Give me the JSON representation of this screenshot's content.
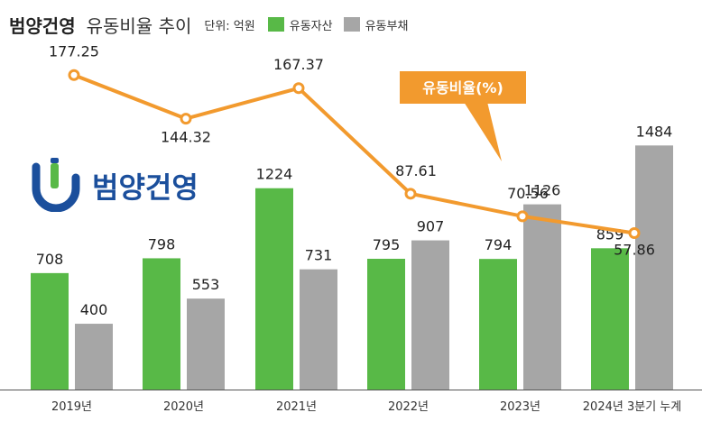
{
  "header": {
    "company": "범양건영",
    "subtitle": "유동비율 추이",
    "unit": "단위: 억원"
  },
  "logo": {
    "text": "범양건영"
  },
  "colors": {
    "asset": "#58b947",
    "liability": "#a6a6a6",
    "ratio": "#f29a2e"
  },
  "chart_data": {
    "type": "bar+line",
    "title": "범양건영 유동비율 추이",
    "unit": "단위: 억원",
    "categories": [
      "2019년",
      "2020년",
      "2021년",
      "2022년",
      "2023년",
      "2024년 3분기 누계"
    ],
    "series": [
      {
        "name": "유동자산",
        "type": "bar",
        "values": [
          708,
          798,
          1224,
          795,
          794,
          859
        ]
      },
      {
        "name": "유동부채",
        "type": "bar",
        "values": [
          400,
          553,
          731,
          907,
          1126,
          1484
        ]
      },
      {
        "name": "유동비율(%)",
        "type": "line",
        "values": [
          177.25,
          144.32,
          167.37,
          87.61,
          70.56,
          57.86
        ]
      }
    ],
    "value_labels": {
      "assets": [
        "708",
        "798",
        "1224",
        "795",
        "794",
        "859"
      ],
      "liabilities": [
        "400",
        "553",
        "731",
        "907",
        "1126",
        "1484"
      ],
      "ratio": [
        "177.25",
        "144.32",
        "167.37",
        "87.61",
        "70.56",
        "57.86"
      ]
    },
    "annotation": "유동비율(%)",
    "ylim_bar": [
      0,
      1600
    ],
    "ylim_line": [
      0,
      200
    ]
  }
}
